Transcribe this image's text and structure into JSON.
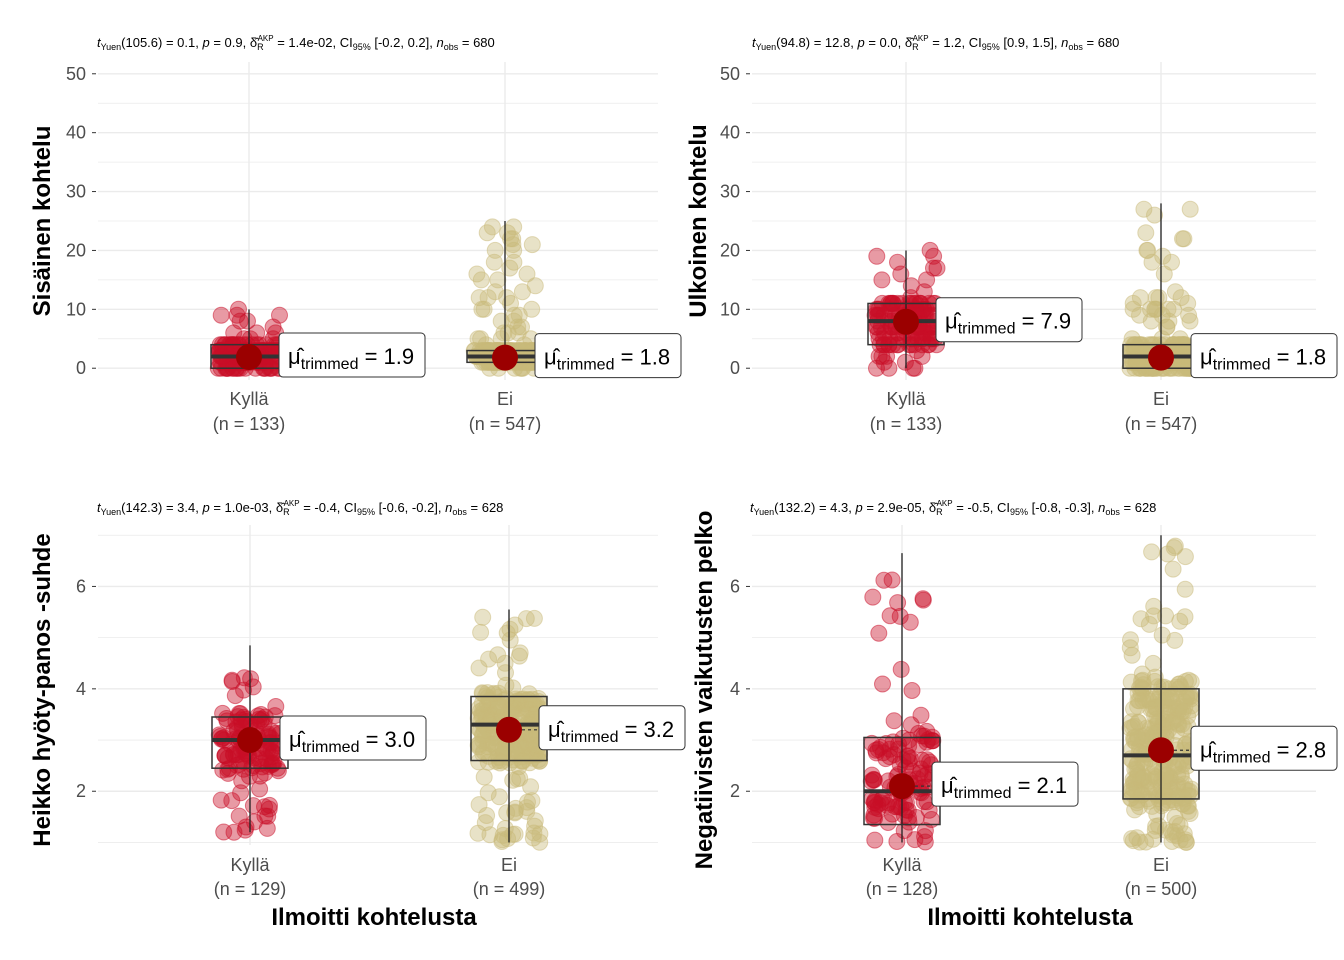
{
  "colors": {
    "group1": "#c90e27",
    "group2": "#c9b97a",
    "mean1": "#9b0000",
    "mean2": "#9b0000"
  },
  "chart_data": [
    {
      "type": "violin-box-scatter",
      "subtitle": {
        "test": "Yuen",
        "df": "105.6",
        "stat": "0.1",
        "p": "0.9",
        "effect": "1.4e-02",
        "ci": "[-0.2, 0.2]",
        "n_obs": "680"
      },
      "xlabel": "",
      "ylabel": "Sisäinen kohtelu",
      "ylim": [
        -2,
        52
      ],
      "yticks": [
        0,
        10,
        20,
        30,
        40,
        50
      ],
      "groups": [
        {
          "name": "Kyllä",
          "n_label": "(n = 133)",
          "trimmed_mean": 1.9,
          "mean_label": "1.9",
          "q1": 0,
          "median": 2,
          "q3": 4,
          "whisker_low": 0,
          "whisker_high": 10
        },
        {
          "name": "Ei",
          "n_label": "(n = 547)",
          "trimmed_mean": 1.8,
          "mean_label": "1.8",
          "q1": 1,
          "median": 2,
          "q3": 3,
          "whisker_low": 0,
          "whisker_high": 25
        }
      ]
    },
    {
      "type": "violin-box-scatter",
      "subtitle": {
        "test": "Yuen",
        "df": "94.8",
        "stat": "12.8",
        "p": "0.0",
        "effect": "1.2",
        "ci": "[0.9, 1.5]",
        "n_obs": "680"
      },
      "xlabel": "",
      "ylabel": "Ulkoinen kohtelu",
      "ylim": [
        -2,
        52
      ],
      "yticks": [
        0,
        10,
        20,
        30,
        40,
        50
      ],
      "groups": [
        {
          "name": "Kyllä",
          "n_label": "(n = 133)",
          "trimmed_mean": 7.9,
          "mean_label": "7.9",
          "q1": 4,
          "median": 8,
          "q3": 11,
          "whisker_low": 0,
          "whisker_high": 20
        },
        {
          "name": "Ei",
          "n_label": "(n = 547)",
          "trimmed_mean": 1.8,
          "mean_label": "1.8",
          "q1": 0,
          "median": 2,
          "q3": 4,
          "whisker_low": 0,
          "whisker_high": 28
        }
      ]
    },
    {
      "type": "violin-box-scatter",
      "subtitle": {
        "test": "Yuen",
        "df": "142.3",
        "stat": "3.4",
        "p": "1.0e-03",
        "effect": "-0.4",
        "ci": "[-0.6, -0.2]",
        "n_obs": "628"
      },
      "xlabel": "Ilmoitti kohtelusta",
      "ylabel": "Heikko hyöty-panos -suhde",
      "ylim": [
        0.95,
        7.2
      ],
      "yticks": [
        2,
        4,
        6
      ],
      "groups": [
        {
          "name": "Kyllä",
          "n_label": "(n = 129)",
          "trimmed_mean": 3.0,
          "mean_label": "3.0",
          "q1": 2.45,
          "median": 3.0,
          "q3": 3.45,
          "whisker_low": 1.2,
          "whisker_high": 4.85
        },
        {
          "name": "Ei",
          "n_label": "(n = 499)",
          "trimmed_mean": 3.2,
          "mean_label": "3.2",
          "q1": 2.6,
          "median": 3.3,
          "q3": 3.85,
          "whisker_low": 1.0,
          "whisker_high": 5.55
        }
      ]
    },
    {
      "type": "violin-box-scatter",
      "subtitle": {
        "test": "Yuen",
        "df": "132.2",
        "stat": "4.3",
        "p": "2.9e-05",
        "effect": "-0.5",
        "ci": "[-0.8, -0.3]",
        "n_obs": "628"
      },
      "xlabel": "Ilmoitti kohtelusta",
      "ylabel": "Negatiivisten vaikutusten pelko",
      "ylim": [
        0.95,
        7.2
      ],
      "yticks": [
        2,
        4,
        6
      ],
      "groups": [
        {
          "name": "Kyllä",
          "n_label": "(n = 128)",
          "trimmed_mean": 2.1,
          "mean_label": "2.1",
          "q1": 1.35,
          "median": 2.0,
          "q3": 3.05,
          "whisker_low": 1.0,
          "whisker_high": 6.65
        },
        {
          "name": "Ei",
          "n_label": "(n = 500)",
          "trimmed_mean": 2.8,
          "mean_label": "2.8",
          "q1": 1.85,
          "median": 2.7,
          "q3": 4.0,
          "whisker_low": 1.0,
          "whisker_high": 7.0
        }
      ]
    }
  ]
}
